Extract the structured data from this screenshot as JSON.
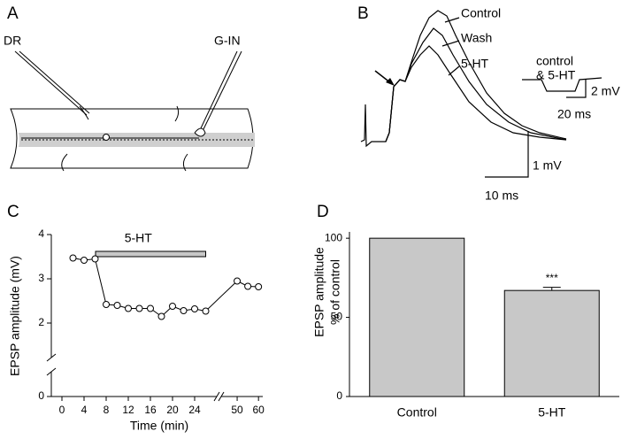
{
  "panel_labels": [
    "A",
    "B",
    "C",
    "D"
  ],
  "diagram": {
    "labels": [
      "DR",
      "G-IN"
    ]
  },
  "traces": {
    "labels": [
      "Control",
      "Wash",
      "5-HT"
    ],
    "inset_label": [
      "control",
      "& 5-HT"
    ],
    "scale_bars": [
      "1 mV",
      "10 ms",
      "2 mV",
      "20 ms"
    ]
  },
  "chart_data": [
    {
      "type": "line",
      "xlabel": "Time (min)",
      "ylabel": "EPSP amplitude (mV)",
      "x": [
        2,
        4,
        6,
        8,
        10,
        12,
        14,
        16,
        18,
        20,
        22,
        24,
        26,
        50,
        55,
        60
      ],
      "series": [
        {
          "color": "#000000",
          "values": [
            3.47,
            3.42,
            3.45,
            2.42,
            2.4,
            2.33,
            2.33,
            2.33,
            2.15,
            2.38,
            2.28,
            2.32,
            2.27,
            2.95,
            2.83,
            2.82
          ]
        }
      ],
      "xlim": [
        0,
        62
      ],
      "xbreak": [
        28,
        45
      ],
      "ylim": [
        0,
        4
      ],
      "ybreak": [
        0,
        1.7
      ],
      "xticks": [
        0,
        4,
        8,
        12,
        16,
        20,
        24,
        50,
        60
      ],
      "yticks": [
        0,
        2,
        3,
        4
      ],
      "annotation": {
        "label": "5-HT",
        "x": [
          8,
          26
        ]
      }
    },
    {
      "type": "bar",
      "ylabel": [
        "EPSP amplitude",
        "% of control"
      ],
      "categories": [
        "Control",
        "5-HT"
      ],
      "values": [
        100,
        67
      ],
      "errors": [
        null,
        2
      ],
      "annotations": [
        null,
        "***"
      ],
      "color": "#c8c8c8",
      "ylim": [
        0,
        104
      ],
      "yticks": [
        0,
        50,
        100
      ]
    }
  ]
}
